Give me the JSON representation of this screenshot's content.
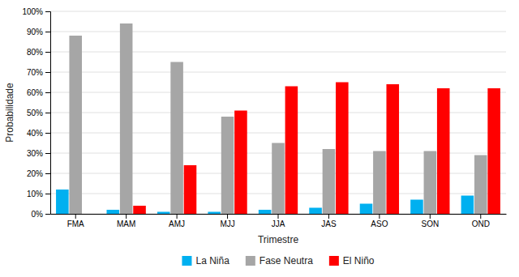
{
  "chart_data": {
    "type": "bar",
    "xlabel": "Trimestre",
    "ylabel": "Probabilidade",
    "categories": [
      "FMA",
      "MAM",
      "AMJ",
      "MJJ",
      "JJA",
      "JAS",
      "ASO",
      "SON",
      "OND"
    ],
    "series": [
      {
        "name": "La Niña",
        "color": "#00B0F0",
        "values": [
          12,
          2,
          1,
          1,
          2,
          3,
          5,
          7,
          9
        ]
      },
      {
        "name": "Fase Neutra",
        "color": "#A6A6A6",
        "values": [
          88,
          94,
          75,
          48,
          35,
          32,
          31,
          31,
          29
        ]
      },
      {
        "name": "El Niño",
        "color": "#FF0000",
        "values": [
          0,
          4,
          24,
          51,
          63,
          65,
          64,
          62,
          62
        ]
      }
    ],
    "ylim": [
      0,
      100
    ],
    "yticks": [
      {
        "value": 0,
        "label": "0%"
      },
      {
        "value": 10,
        "label": "10%"
      },
      {
        "value": 20,
        "label": "20%"
      },
      {
        "value": 30,
        "label": "30%"
      },
      {
        "value": 40,
        "label": "40%"
      },
      {
        "value": 50,
        "label": "50%"
      },
      {
        "value": 60,
        "label": "60%"
      },
      {
        "value": 70,
        "label": "70%"
      },
      {
        "value": 80,
        "label": "80%"
      },
      {
        "value": 90,
        "label": "90%"
      },
      {
        "value": 100,
        "label": "100%"
      }
    ],
    "grid": true,
    "legend": "bottom"
  }
}
